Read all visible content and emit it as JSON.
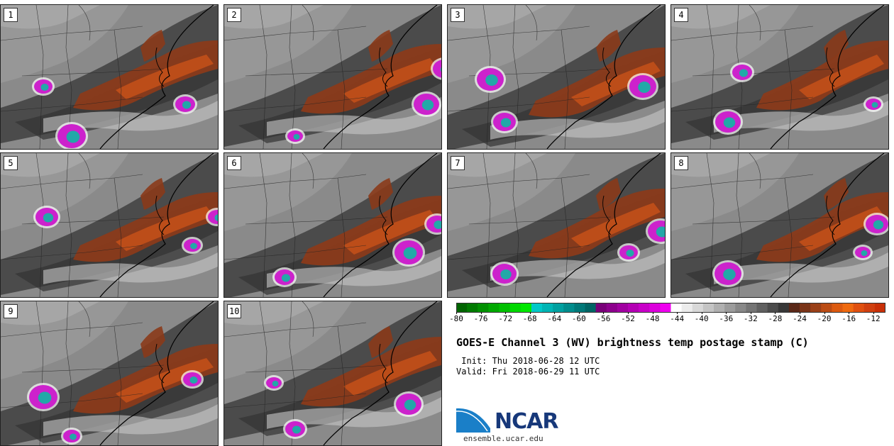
{
  "panels": [
    {
      "label": "1",
      "variant": 0
    },
    {
      "label": "2",
      "variant": 1
    },
    {
      "label": "3",
      "variant": 2
    },
    {
      "label": "4",
      "variant": 3
    },
    {
      "label": "5",
      "variant": 4
    },
    {
      "label": "6",
      "variant": 5
    },
    {
      "label": "7",
      "variant": 6
    },
    {
      "label": "8",
      "variant": 7
    },
    {
      "label": "9",
      "variant": 8
    },
    {
      "label": "10",
      "variant": 9
    }
  ],
  "colorbar": {
    "min": -80,
    "max": -10,
    "step": 2,
    "ticks": [
      "-80",
      "-76",
      "-72",
      "-68",
      "-64",
      "-60",
      "-56",
      "-52",
      "-48",
      "-44",
      "-40",
      "-36",
      "-32",
      "-28",
      "-24",
      "-20",
      "-16",
      "-12"
    ],
    "colors": [
      "#006400",
      "#007a00",
      "#009000",
      "#00a800",
      "#00c000",
      "#00d800",
      "#00e800",
      "#00c8c8",
      "#00b4b4",
      "#00a0a0",
      "#008c8c",
      "#007878",
      "#006464",
      "#780078",
      "#8c008c",
      "#a000a0",
      "#b400b4",
      "#c800c8",
      "#dc00dc",
      "#f000f0",
      "#ffffff",
      "#ececec",
      "#d8d8d8",
      "#c4c4c4",
      "#b0b0b0",
      "#9c9c9c",
      "#888888",
      "#747474",
      "#606060",
      "#4c4c4c",
      "#383838",
      "#5a2818",
      "#7a3418",
      "#9a4018",
      "#bb4c14",
      "#dc5a10",
      "#ef6a10",
      "#e05010",
      "#d04010",
      "#c83008"
    ]
  },
  "title": "GOES-E Channel 3 (WV) brightness temp postage stamp (C)",
  "init": " Init: Thu 2018-06-28 12 UTC",
  "valid": "Valid: Fri 2018-06-29 11 UTC",
  "logo": {
    "text": "NCAR",
    "site": "ensemble.ucar.edu",
    "color": "#17387a",
    "accent": "#1a7fc8"
  }
}
